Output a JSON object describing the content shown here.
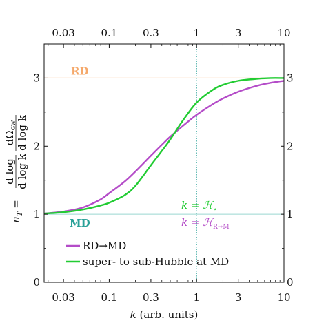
{
  "chart_data": {
    "type": "line",
    "xlabel": "k (arb. units)",
    "xlabel_var": "k",
    "xlabel_rest": " (arb. units)",
    "ylabel": "n_T = dlog dΩ_GW / dlog k dlog k",
    "ylabel_lhs": "n",
    "ylabel_sub": "T",
    "ylabel_num_a": "d log",
    "ylabel_num_b": "dΩ",
    "ylabel_num_sub": "GW",
    "ylabel_den_a": "d log k",
    "ylabel_den_b": "d log k",
    "x_scale": "log",
    "xlim": [
      0.018,
      10
    ],
    "ylim": [
      0,
      3.5
    ],
    "x_ticks": [
      0.03,
      0.1,
      0.3,
      1,
      3,
      10
    ],
    "x_tick_labels": [
      "0.03",
      "0.1",
      "0.3",
      "1",
      "3",
      "10"
    ],
    "y_ticks": [
      0,
      1,
      2,
      3
    ],
    "y_tick_labels": [
      "0",
      "1",
      "2",
      "3"
    ],
    "hlines": [
      {
        "y": 3,
        "label": "RD",
        "color": "#f5a86a"
      },
      {
        "y": 1,
        "label": "MD",
        "color": "#2aa198"
      }
    ],
    "vline": {
      "x": 1,
      "color": "#2aa198"
    },
    "annotations": [
      {
        "text_lhs": "k",
        "text_eq": " = ",
        "text_sym": "ℋ",
        "text_sub": "⋆",
        "color": "#22cc33"
      },
      {
        "text_lhs": "k",
        "text_eq": " = ",
        "text_sym": "ℋ",
        "text_sub": "R→M",
        "color": "#b44cc8"
      }
    ],
    "series": [
      {
        "name": "RD→MD",
        "color": "#b44cc8",
        "x": [
          0.018,
          0.03,
          0.05,
          0.08,
          0.1,
          0.15,
          0.2,
          0.3,
          0.4,
          0.5,
          0.7,
          1,
          1.5,
          2,
          3,
          5,
          7,
          10
        ],
        "y": [
          1.01,
          1.04,
          1.1,
          1.22,
          1.31,
          1.48,
          1.63,
          1.86,
          2.02,
          2.14,
          2.3,
          2.46,
          2.61,
          2.7,
          2.8,
          2.89,
          2.93,
          2.96
        ]
      },
      {
        "name": "super- to sub-Hubble at MD",
        "color": "#22cc33",
        "x": [
          0.018,
          0.03,
          0.05,
          0.08,
          0.1,
          0.15,
          0.2,
          0.3,
          0.4,
          0.5,
          0.7,
          1,
          1.5,
          2,
          3,
          5,
          7,
          10
        ],
        "y": [
          1.01,
          1.03,
          1.07,
          1.13,
          1.17,
          1.28,
          1.42,
          1.72,
          1.93,
          2.1,
          2.38,
          2.64,
          2.82,
          2.9,
          2.96,
          2.99,
          3.0,
          3.0
        ]
      }
    ],
    "legend_position": "bottom-left"
  }
}
